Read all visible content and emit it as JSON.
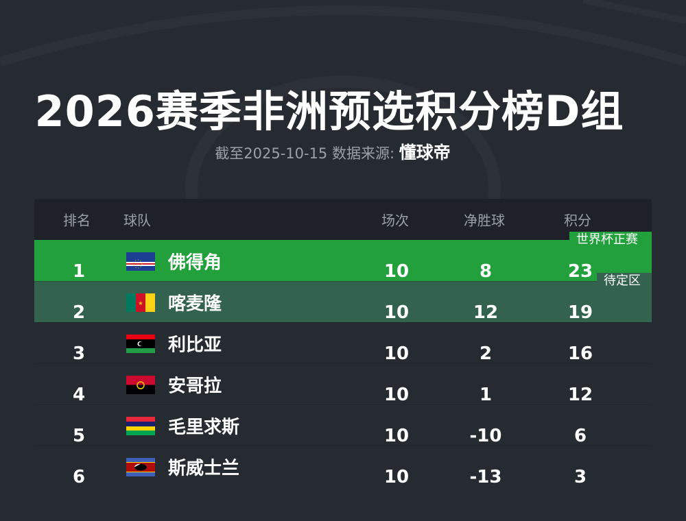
{
  "title": "2026赛季非洲预选积分榜D组",
  "subtitle": {
    "date_text": "截至2025-10-15 数据来源:",
    "source": "懂球帝"
  },
  "columns": [
    "排名",
    "球队",
    "场次",
    "净胜球",
    "积分"
  ],
  "badges": {
    "qualified": "世界杯正赛",
    "pending": "待定区"
  },
  "colors": {
    "qualified": "#21a03c",
    "pending": "#33634f",
    "background": "#262b31"
  },
  "rows": [
    {
      "rank": "1",
      "team": "佛得角",
      "flag": "cape-verde-flag",
      "played": "10",
      "gd": "8",
      "points": "23"
    },
    {
      "rank": "2",
      "team": "喀麦隆",
      "flag": "cameroon-flag",
      "played": "10",
      "gd": "12",
      "points": "19"
    },
    {
      "rank": "3",
      "team": "利比亚",
      "flag": "libya-flag",
      "played": "10",
      "gd": "2",
      "points": "16"
    },
    {
      "rank": "4",
      "team": "安哥拉",
      "flag": "angola-flag",
      "played": "10",
      "gd": "1",
      "points": "12"
    },
    {
      "rank": "5",
      "team": "毛里求斯",
      "flag": "mauritius-flag",
      "played": "10",
      "gd": "-10",
      "points": "6"
    },
    {
      "rank": "6",
      "team": "斯威士兰",
      "flag": "eswatini-flag",
      "played": "10",
      "gd": "-13",
      "points": "3"
    }
  ]
}
